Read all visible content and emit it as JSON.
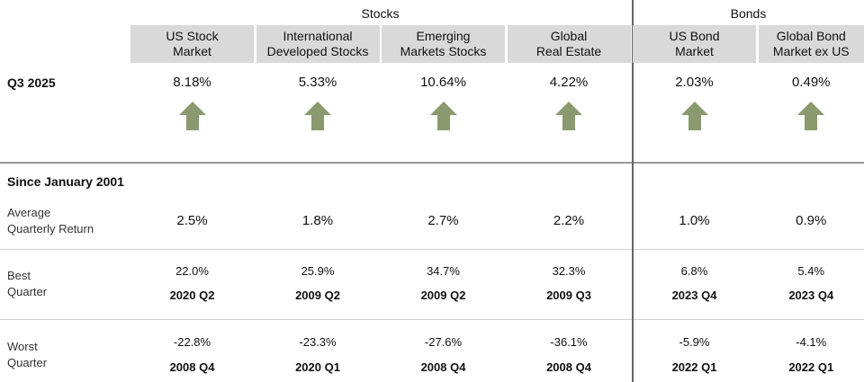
{
  "group_headers": [
    "Stocks",
    "Bonds"
  ],
  "columns": [
    [
      "US Stock",
      "Market"
    ],
    [
      "International",
      "Developed Stocks"
    ],
    [
      "Emerging",
      "Markets Stocks"
    ],
    [
      "Global",
      "Real Estate"
    ],
    [
      "US Bond",
      "Market"
    ],
    [
      "Global Bond",
      "Market ex US"
    ]
  ],
  "q3": {
    "label": "Q3 2025",
    "values": [
      "8.18%",
      "5.33%",
      "10.64%",
      "4.22%",
      "2.03%",
      "0.49%"
    ]
  },
  "since_label": "Since January 2001",
  "average": {
    "label": [
      "Average",
      "Quarterly Return"
    ],
    "values": [
      "2.5%",
      "1.8%",
      "2.7%",
      "2.2%",
      "1.0%",
      "0.9%"
    ]
  },
  "best": {
    "label": [
      "Best",
      "Quarter"
    ],
    "values": [
      "22.0%",
      "25.9%",
      "34.7%",
      "32.3%",
      "6.8%",
      "5.4%"
    ],
    "periods": [
      "2020 Q2",
      "2009 Q2",
      "2009 Q2",
      "2009 Q3",
      "2023 Q4",
      "2023 Q4"
    ]
  },
  "worst": {
    "label": [
      "Worst",
      "Quarter"
    ],
    "values": [
      "-22.8%",
      "-23.3%",
      "-27.6%",
      "-36.1%",
      "-5.9%",
      "-4.1%"
    ],
    "periods": [
      "2008 Q4",
      "2020 Q1",
      "2008 Q4",
      "2008 Q4",
      "2022 Q1",
      "2022 Q1"
    ]
  }
}
